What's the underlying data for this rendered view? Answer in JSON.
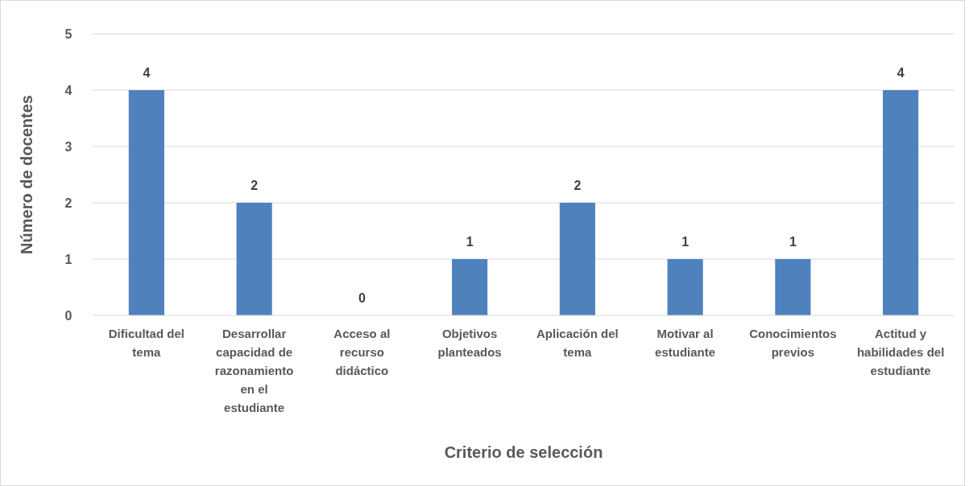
{
  "chart_data": {
    "type": "bar",
    "xlabel": "Criterio de selección",
    "ylabel": "Número de docentes",
    "categories": [
      "Dificultad del tema",
      "Desarrollar capacidad de razonamiento en el estudiante",
      "Acceso al recurso didáctico",
      "Objetivos planteados",
      "Aplicación del tema",
      "Motivar al estudiante",
      "Conocimientos previos",
      "Actitud y habilidades del estudiante"
    ],
    "values": [
      4,
      2,
      0,
      1,
      2,
      1,
      1,
      4
    ],
    "color": "#4f81bd",
    "ylim": [
      0,
      5
    ],
    "yticks": [
      0,
      1,
      2,
      3,
      4,
      5
    ],
    "grid": "y",
    "data_labels": true
  }
}
